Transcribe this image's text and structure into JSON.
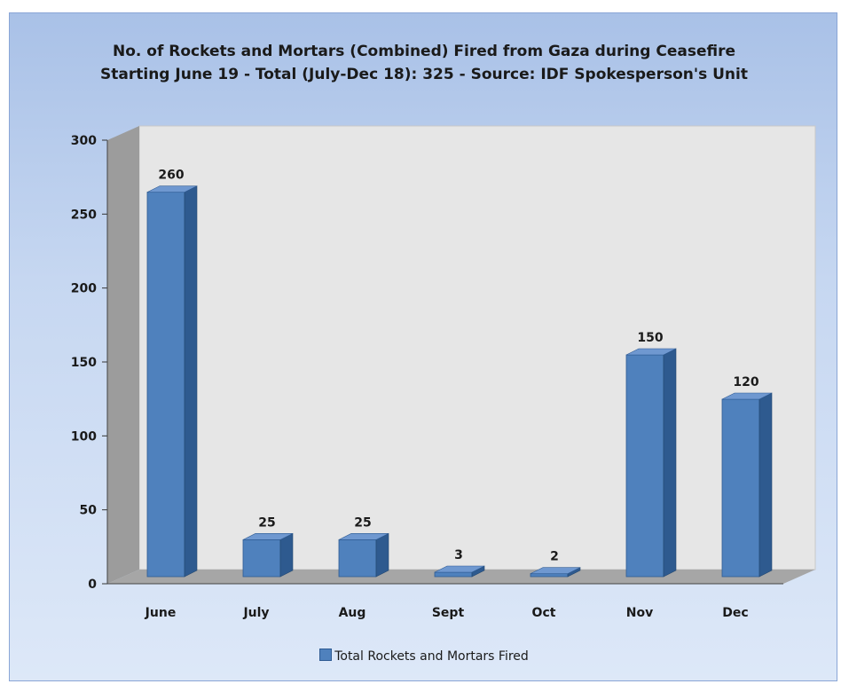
{
  "chart_data": {
    "type": "bar",
    "title": "No. of Rockets and Mortars (Combined) Fired from Gaza during Ceasefire",
    "subtitle": "Starting June 19 - Total (July-Dec 18): 325 - Source: IDF Spokesperson's Unit",
    "categories": [
      "June",
      "July",
      "Aug",
      "Sept",
      "Oct",
      "Nov",
      "Dec"
    ],
    "series": [
      {
        "name": "Total Rockets and Mortars Fired",
        "values": [
          260,
          25,
          25,
          3,
          2,
          150,
          120
        ]
      }
    ],
    "data_labels": [
      "260",
      "25",
      "25",
      "3",
      "2",
      "150",
      "120"
    ],
    "ylim": [
      0,
      300
    ],
    "yticks": [
      0,
      50,
      100,
      150,
      200,
      250,
      300
    ],
    "grid": false,
    "legend_position": "bottom",
    "style": "3d-column",
    "colors": {
      "bar_front": "#4f81bd",
      "bar_side": "#2e5a8f",
      "bar_top": "#6f98d0",
      "plot_back": "#e6e6e6",
      "plot_wall": "#9c9c9c",
      "plot_floor": "#a6a6a6"
    }
  }
}
